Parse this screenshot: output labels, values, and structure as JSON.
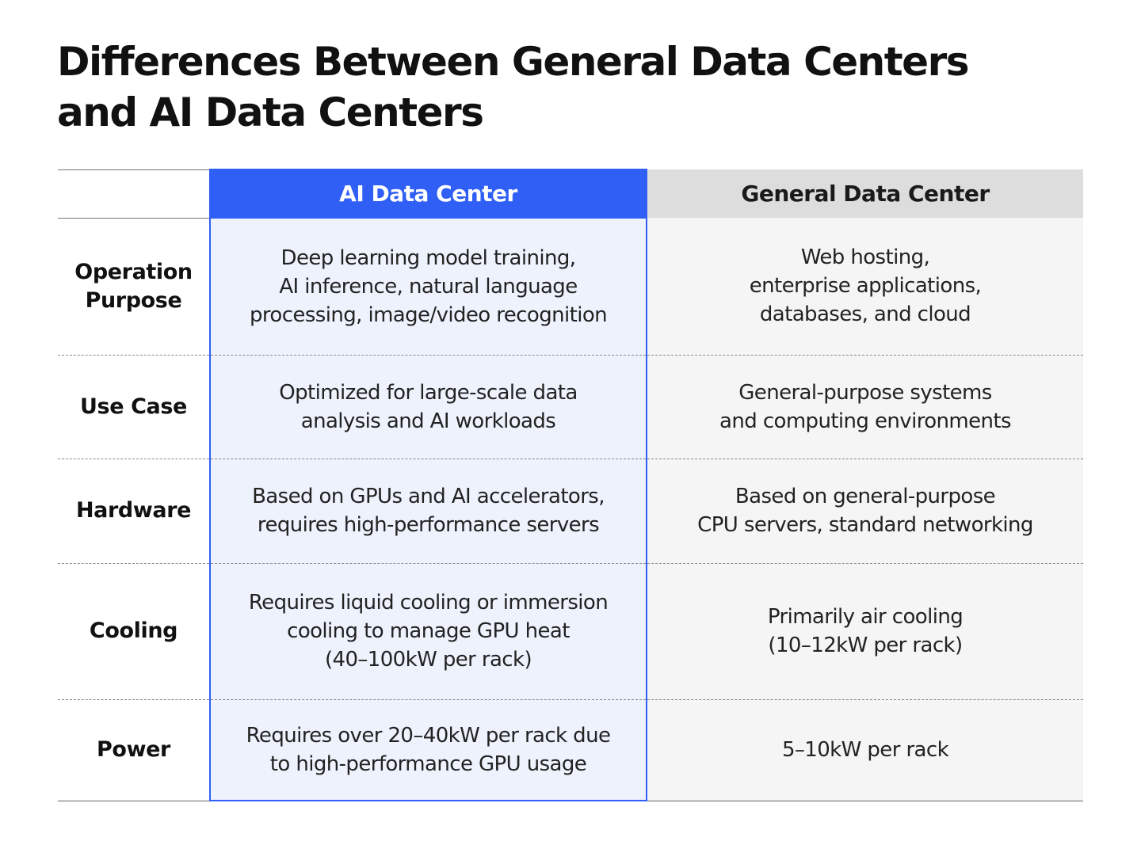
{
  "title": {
    "line1": "Differences Between General Data Centers",
    "line2": "and AI Data Centers"
  },
  "table": {
    "columns": {
      "ai": "AI Data Center",
      "general": "General Data Center"
    },
    "rows": [
      {
        "label": "Operation\nPurpose",
        "ai": "Deep learning model training,\nAI inference, natural language\nprocessing, image/video recognition",
        "general": "Web hosting,\nenterprise applications,\ndatabases, and cloud"
      },
      {
        "label": "Use Case",
        "ai": "Optimized for large-scale data\nanalysis and AI workloads",
        "general": "General-purpose systems\nand computing environments"
      },
      {
        "label": "Hardware",
        "ai": "Based on GPUs and AI accelerators,\nrequires high-performance servers",
        "general": "Based on general-purpose\nCPU servers, standard networking"
      },
      {
        "label": "Cooling",
        "ai": "Requires liquid cooling or immersion\ncooling to manage GPU heat\n(40–100kW per rack)",
        "general": "Primarily air cooling\n(10–12kW per rack)"
      },
      {
        "label": "Power",
        "ai": "Requires over 20–40kW per rack due\nto high-performance GPU usage",
        "general": "5–10kW per rack"
      }
    ]
  },
  "colors": {
    "accent_blue": "#2f5ff5",
    "ai_cell_bg": "#edf2fd",
    "general_header_bg": "#dddddd",
    "general_cell_bg": "#f5f5f5"
  }
}
